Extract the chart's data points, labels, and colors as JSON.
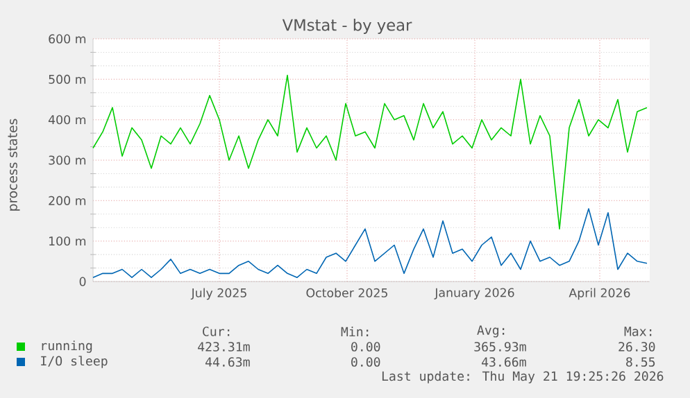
{
  "chart_data": {
    "type": "line",
    "title": "VMstat - by year",
    "ylabel": "process states",
    "x": [
      "2025-04-15",
      "2025-04-22",
      "2025-04-29",
      "2025-05-06",
      "2025-05-13",
      "2025-05-20",
      "2025-05-27",
      "2025-06-03",
      "2025-06-10",
      "2025-06-17",
      "2025-06-24",
      "2025-07-01",
      "2025-07-08",
      "2025-07-15",
      "2025-07-22",
      "2025-07-29",
      "2025-08-05",
      "2025-08-12",
      "2025-08-19",
      "2025-08-26",
      "2025-09-02",
      "2025-09-09",
      "2025-09-16",
      "2025-09-23",
      "2025-09-30",
      "2025-10-07",
      "2025-10-14",
      "2025-10-21",
      "2025-10-28",
      "2025-11-04",
      "2025-11-11",
      "2025-11-18",
      "2025-11-25",
      "2025-12-02",
      "2025-12-09",
      "2025-12-16",
      "2025-12-23",
      "2025-12-30",
      "2026-01-06",
      "2026-01-13",
      "2026-01-20",
      "2026-01-27",
      "2026-02-03",
      "2026-02-10",
      "2026-02-17",
      "2026-02-24",
      "2026-03-03",
      "2026-03-10",
      "2026-03-17",
      "2026-03-24",
      "2026-03-31",
      "2026-04-07",
      "2026-04-14",
      "2026-04-21",
      "2026-04-28",
      "2026-05-05",
      "2026-05-12",
      "2026-05-19"
    ],
    "series": [
      {
        "name": "running",
        "color": "#00cc00",
        "values": [
          330,
          370,
          430,
          310,
          380,
          350,
          280,
          360,
          340,
          380,
          340,
          390,
          460,
          400,
          300,
          360,
          280,
          350,
          400,
          360,
          510,
          320,
          380,
          330,
          360,
          300,
          440,
          360,
          370,
          330,
          440,
          400,
          410,
          350,
          440,
          380,
          420,
          340,
          360,
          330,
          400,
          350,
          380,
          360,
          500,
          340,
          410,
          360,
          130,
          380,
          450,
          360,
          400,
          380,
          450,
          320,
          420,
          430
        ]
      },
      {
        "name": "I/O sleep",
        "color": "#0066b3",
        "values": [
          10,
          20,
          20,
          30,
          10,
          30,
          10,
          30,
          55,
          20,
          30,
          20,
          30,
          20,
          20,
          40,
          50,
          30,
          20,
          40,
          20,
          10,
          30,
          20,
          60,
          70,
          50,
          90,
          130,
          50,
          70,
          90,
          20,
          80,
          130,
          60,
          150,
          70,
          80,
          50,
          90,
          110,
          40,
          70,
          30,
          100,
          50,
          60,
          40,
          50,
          100,
          180,
          90,
          170,
          30,
          70,
          50,
          45
        ]
      }
    ],
    "xlim": [
      "2025-04-15",
      "2026-05-21"
    ],
    "xticks": [
      {
        "value": "2025-07-15",
        "label": "July 2025"
      },
      {
        "value": "2025-10-15",
        "label": "October 2025"
      },
      {
        "value": "2026-01-15",
        "label": "January 2026"
      },
      {
        "value": "2026-04-15",
        "label": "April 2026"
      }
    ],
    "ylim": [
      0,
      600
    ],
    "yticks": [
      0,
      {
        "value": 100,
        "label": "100 m"
      },
      {
        "value": 200,
        "label": "200 m"
      },
      {
        "value": 300,
        "label": "300 m"
      },
      {
        "value": 400,
        "label": "400 m"
      },
      {
        "value": 500,
        "label": "500 m"
      },
      {
        "value": 600,
        "label": "600 m"
      }
    ],
    "grid": true,
    "legend": "bottom",
    "annotations": [
      "Cur:",
      "Min:",
      "Avg:",
      "Max:",
      "423.31m",
      "0.00",
      "365.93m",
      "26.30",
      "44.63m",
      "0.00",
      "43.66m",
      "8.55",
      "Last update: Thu May 21 19:25:26 2026"
    ]
  }
}
